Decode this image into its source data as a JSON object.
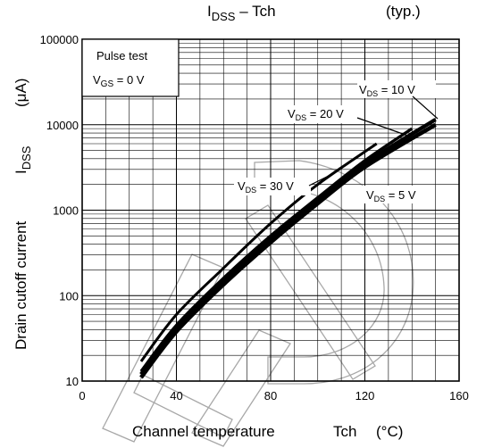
{
  "chart_data": {
    "type": "line",
    "title_main": "I",
    "title_sub": "DSS",
    "title_rest": " – Tch",
    "title_typ": "(typ.)",
    "xlabel": "Channel temperature",
    "xlabel_symbol": "Tch",
    "xlabel_unit": "(°C)",
    "ylabel": "Drain cutoff current",
    "ylabel_symbol_main": "I",
    "ylabel_symbol_sub": "DSS",
    "ylabel_unit": "(μA)",
    "xlim": [
      0,
      160
    ],
    "ylim": [
      10,
      100000
    ],
    "yscale": "log",
    "grid": true,
    "x_ticks": [
      0,
      40,
      80,
      120,
      160
    ],
    "x_tick_labels": [
      "0",
      "40",
      "80",
      "120",
      "160"
    ],
    "y_ticks": [
      10,
      100,
      1000,
      10000,
      100000
    ],
    "y_tick_labels": [
      "10",
      "100",
      "1000",
      "10000",
      "100000"
    ],
    "legend": {
      "line1": "Pulse test",
      "line2_main": "V",
      "line2_sub": "GS",
      "line2_rest": " = 0 V",
      "placement": "top-left"
    },
    "series": [
      {
        "name_main": "V",
        "name_sub": "DS",
        "name_rest": " = 30 V",
        "x": [
          25,
          40,
          60,
          80,
          100,
          125
        ],
        "y": [
          17,
          60,
          210,
          700,
          2000,
          6000
        ]
      },
      {
        "name_main": "V",
        "name_sub": "DS",
        "name_rest": " = 20 V",
        "x": [
          25,
          40,
          60,
          80,
          100,
          120,
          140
        ],
        "y": [
          13,
          45,
          160,
          500,
          1400,
          3800,
          9000
        ]
      },
      {
        "name_main": "V",
        "name_sub": "DS",
        "name_rest": " = 10 V",
        "x": [
          25,
          40,
          60,
          80,
          100,
          120,
          150
        ],
        "y": [
          12,
          42,
          145,
          450,
          1300,
          3500,
          11500
        ]
      },
      {
        "name_main": "V",
        "name_sub": "DS",
        "name_rest": " = 5 V",
        "x": [
          25,
          40,
          60,
          80,
          100,
          120,
          150
        ],
        "y": [
          11,
          38,
          135,
          420,
          1200,
          3200,
          10000
        ]
      }
    ],
    "colors": {
      "series": "#000000",
      "grid": "#000000",
      "watermark": "#a0a0a0"
    }
  }
}
